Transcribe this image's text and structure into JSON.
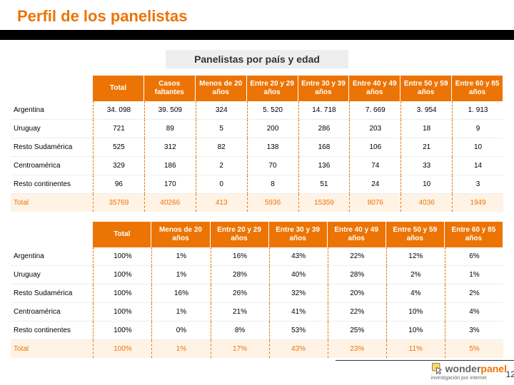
{
  "title": "Perfil de los panelistas",
  "subtitle": "Panelistas por país y edad",
  "pageNumber": "12",
  "logo": {
    "part1": "wonder",
    "part2": "panel",
    "sub": "investigación por internet"
  },
  "table1": {
    "headers": [
      "",
      "Total",
      "Casos faltantes",
      "Menos de 20 años",
      "Entre 20 y 29 años",
      "Entre 30 y 39 años",
      "Entre 40 y 49 años",
      "Entre 50 y 59 años",
      "Entre 60 y 85 años"
    ],
    "rows": [
      [
        "Argentina",
        "34. 098",
        "39. 509",
        "324",
        "5. 520",
        "14. 718",
        "7. 669",
        "3. 954",
        "1. 913"
      ],
      [
        "Uruguay",
        "721",
        "89",
        "5",
        "200",
        "286",
        "203",
        "18",
        "9"
      ],
      [
        "Resto Sudamérica",
        "525",
        "312",
        "82",
        "138",
        "168",
        "106",
        "21",
        "10"
      ],
      [
        "Centroamérica",
        "329",
        "186",
        "2",
        "70",
        "136",
        "74",
        "33",
        "14"
      ],
      [
        "Resto continentes",
        "96",
        "170",
        "0",
        "8",
        "51",
        "24",
        "10",
        "3"
      ],
      [
        "Total",
        "35769",
        "40266",
        "413",
        "5936",
        "15359",
        "8076",
        "4036",
        "1949"
      ]
    ]
  },
  "table2": {
    "headers": [
      "",
      "Total",
      "Menos de 20 años",
      "Entre 20 y 29 años",
      "Entre 30 y 39 años",
      "Entre 40 y 49 años",
      "Entre 50 y 59 años",
      "Entre 60 y 85 años"
    ],
    "rows": [
      [
        "Argentina",
        "100%",
        "1%",
        "16%",
        "43%",
        "22%",
        "12%",
        "6%"
      ],
      [
        "Uruguay",
        "100%",
        "1%",
        "28%",
        "40%",
        "28%",
        "2%",
        "1%"
      ],
      [
        "Resto Sudamérica",
        "100%",
        "16%",
        "26%",
        "32%",
        "20%",
        "4%",
        "2%"
      ],
      [
        "Centroamérica",
        "100%",
        "1%",
        "21%",
        "41%",
        "22%",
        "10%",
        "4%"
      ],
      [
        "Resto continentes",
        "100%",
        "0%",
        "8%",
        "53%",
        "25%",
        "10%",
        "3%"
      ],
      [
        "Total",
        "100%",
        "1%",
        "17%",
        "43%",
        "23%",
        "11%",
        "5%"
      ]
    ]
  }
}
